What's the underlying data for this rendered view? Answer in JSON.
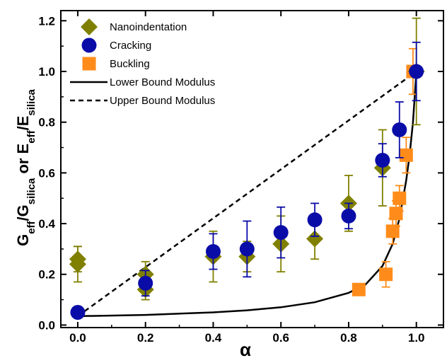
{
  "chart_data": {
    "type": "scatter",
    "xlabel": "α",
    "ylabel": {
      "parts": [
        {
          "text": "G",
          "sub": false
        },
        {
          "text": "eff",
          "sub": true
        },
        {
          "text": "/G",
          "sub": false
        },
        {
          "text": "silica",
          "sub": true
        },
        {
          "text": " or  E",
          "sub": false
        },
        {
          "text": "eff",
          "sub": true
        },
        {
          "text": "/E",
          "sub": false
        },
        {
          "text": "silica",
          "sub": true
        }
      ]
    },
    "xlim": [
      -0.05,
      1.08
    ],
    "ylim": [
      -0.01,
      1.24
    ],
    "xticks": [
      "0.0",
      "0.2",
      "0.4",
      "0.6",
      "0.8",
      "1.0"
    ],
    "yticks": [
      "0.0",
      "0.2",
      "0.4",
      "0.6",
      "0.8",
      "1.0",
      "1.2"
    ],
    "legend_position": "top-left",
    "series": [
      {
        "name": "Nanoindentation",
        "marker": "diamond",
        "color": "#808000",
        "points": [
          {
            "x": 0.0,
            "y": 0.26,
            "err": 0.05
          },
          {
            "x": 0.0,
            "y": 0.24,
            "err": 0.07
          },
          {
            "x": 0.2,
            "y": 0.2,
            "err": 0.05
          },
          {
            "x": 0.2,
            "y": 0.14,
            "err": 0.04
          },
          {
            "x": 0.4,
            "y": 0.27,
            "err": 0.1
          },
          {
            "x": 0.5,
            "y": 0.27,
            "err": 0.06
          },
          {
            "x": 0.6,
            "y": 0.32,
            "err": 0.11
          },
          {
            "x": 0.7,
            "y": 0.34,
            "err": 0.08
          },
          {
            "x": 0.8,
            "y": 0.48,
            "err": 0.11
          },
          {
            "x": 0.9,
            "y": 0.62,
            "err": 0.15
          },
          {
            "x": 1.0,
            "y": 1.0,
            "err": 0.21
          }
        ]
      },
      {
        "name": "Cracking",
        "marker": "circle",
        "color": "#0a0ca8",
        "points": [
          {
            "x": 0.0,
            "y": 0.05,
            "err": 0.0
          },
          {
            "x": 0.2,
            "y": 0.165,
            "err": 0.05
          },
          {
            "x": 0.4,
            "y": 0.29,
            "err": 0.07
          },
          {
            "x": 0.5,
            "y": 0.3,
            "err": 0.11
          },
          {
            "x": 0.6,
            "y": 0.365,
            "err": 0.1
          },
          {
            "x": 0.7,
            "y": 0.415,
            "err": 0.065
          },
          {
            "x": 0.8,
            "y": 0.43,
            "err": 0.05
          },
          {
            "x": 0.9,
            "y": 0.65,
            "err": 0.065
          },
          {
            "x": 0.95,
            "y": 0.77,
            "err": 0.11
          },
          {
            "x": 1.0,
            "y": 1.0,
            "err": 0.115
          }
        ]
      },
      {
        "name": "Buckling",
        "marker": "square",
        "color": "#ff8c1a",
        "points": [
          {
            "x": 0.83,
            "y": 0.14,
            "err": 0.0
          },
          {
            "x": 0.91,
            "y": 0.2,
            "err": 0.05
          },
          {
            "x": 0.93,
            "y": 0.37,
            "err": 0.05
          },
          {
            "x": 0.94,
            "y": 0.44,
            "err": 0.05
          },
          {
            "x": 0.95,
            "y": 0.5,
            "err": 0.05
          },
          {
            "x": 0.97,
            "y": 0.67,
            "err": 0.07
          },
          {
            "x": 0.99,
            "y": 1.0,
            "err": 0.09
          }
        ]
      },
      {
        "name": "Lower Bound Modulus",
        "line": "solid",
        "color": "#000000",
        "x": [
          0.0,
          0.2,
          0.4,
          0.5,
          0.6,
          0.7,
          0.8,
          0.85,
          0.9,
          0.93,
          0.95,
          0.97,
          0.98,
          0.99,
          1.0
        ],
        "y": [
          0.035,
          0.04,
          0.05,
          0.058,
          0.07,
          0.09,
          0.127,
          0.16,
          0.233,
          0.32,
          0.42,
          0.57,
          0.67,
          0.8,
          1.0
        ]
      },
      {
        "name": "Upper Bound Modulus",
        "line": "dashed",
        "color": "#000000",
        "x": [
          0.0,
          1.0
        ],
        "y": [
          0.035,
          1.0
        ]
      }
    ]
  }
}
